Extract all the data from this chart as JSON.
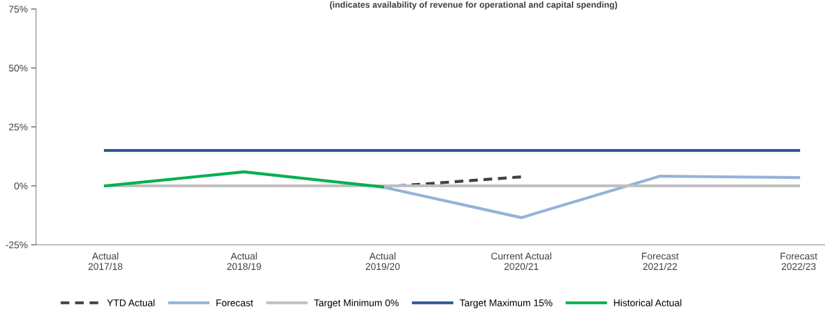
{
  "chart_data": {
    "type": "line",
    "subtitle": "(indicates availability of revenue for operational and capital spending)",
    "categories": [
      "Actual\n2017/18",
      "Actual\n2018/19",
      "Actual\n2019/20",
      "Current Actual\n2020/21",
      "Forecast\n2021/22",
      "Forecast\n2022/23"
    ],
    "series": [
      {
        "name": "YTD Actual",
        "color": "#404040",
        "line_style": "dashed",
        "values": [
          null,
          null,
          -0.5,
          3.8,
          null,
          null
        ]
      },
      {
        "name": "Forecast",
        "color": "#95b3d7",
        "values": [
          null,
          null,
          -0.5,
          -13.5,
          4.1,
          3.5
        ]
      },
      {
        "name": "Target Minimum 0%",
        "color": "#bfbfbf",
        "values": [
          0,
          0,
          0,
          0,
          0,
          0
        ]
      },
      {
        "name": "Target Maximum 15%",
        "color": "#2f5597",
        "values": [
          15,
          15,
          15,
          15,
          15,
          15
        ]
      },
      {
        "name": "Historical Actual",
        "color": "#00b050",
        "values": [
          0,
          5.9,
          -0.5,
          null,
          null,
          null
        ]
      }
    ],
    "ylim": [
      -25,
      75
    ],
    "yticks": [
      {
        "value": -25,
        "label": "-25%"
      },
      {
        "value": 0,
        "label": "0%"
      },
      {
        "value": 25,
        "label": "25%"
      },
      {
        "value": 50,
        "label": "50%"
      },
      {
        "value": 75,
        "label": "75%"
      }
    ],
    "grid": false,
    "legend": "bottom",
    "marker": "none"
  }
}
